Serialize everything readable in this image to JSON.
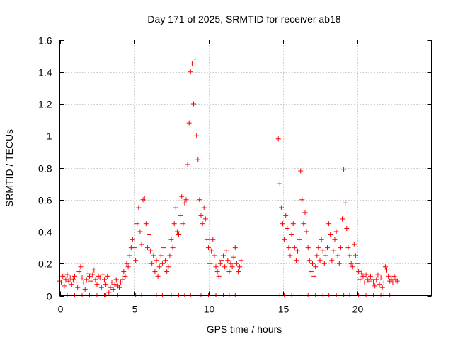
{
  "colors": {
    "series": "#ff0000",
    "grid": "#a0a0a0",
    "axis": "#000000"
  },
  "chart_data": {
    "type": "scatter",
    "title": "Day 171 of 2025, SRMTID for receiver ab18",
    "xlabel": "GPS time / hours",
    "ylabel": "SRMTID / TECUs",
    "xlim": [
      0,
      25
    ],
    "ylim": [
      0,
      1.6
    ],
    "xticks": [
      0,
      5,
      10,
      15,
      20
    ],
    "yticks": [
      0,
      0.2,
      0.4,
      0.6,
      0.8,
      1,
      1.2,
      1.4,
      1.6
    ],
    "xtick_labels": [
      "0",
      "5",
      "10",
      "15",
      "20"
    ],
    "ytick_labels": [
      "0",
      "0.2",
      "0.4",
      "0.6",
      "0.8",
      "1",
      "1.2",
      "1.4",
      "1.6"
    ],
    "grid": true,
    "marker": "+",
    "data_gap_hours": [
      12.3,
      14.6
    ],
    "series": [
      {
        "name": "SRMTID",
        "points": [
          [
            0.0,
            0.09
          ],
          [
            0.1,
            0.08
          ],
          [
            0.2,
            0.12
          ],
          [
            0.3,
            0.06
          ],
          [
            0.4,
            0.1
          ],
          [
            0.5,
            0.13
          ],
          [
            0.6,
            0.09
          ],
          [
            0.7,
            0.11
          ],
          [
            0.8,
            0.07
          ],
          [
            0.9,
            0.1
          ],
          [
            1.0,
            0.12
          ],
          [
            1.1,
            0.08
          ],
          [
            1.2,
            0.05
          ],
          [
            1.3,
            0.15
          ],
          [
            1.4,
            0.18
          ],
          [
            1.5,
            0.11
          ],
          [
            1.6,
            0.08
          ],
          [
            1.7,
            0.04
          ],
          [
            1.8,
            0.1
          ],
          [
            1.9,
            0.14
          ],
          [
            2.0,
            0.12
          ],
          [
            2.1,
            0.09
          ],
          [
            2.2,
            0.13
          ],
          [
            2.3,
            0.16
          ],
          [
            2.4,
            0.1
          ],
          [
            2.5,
            0.07
          ],
          [
            2.6,
            0.12
          ],
          [
            2.7,
            0.11
          ],
          [
            2.8,
            0.05
          ],
          [
            2.9,
            0.13
          ],
          [
            3.0,
            0.1
          ],
          [
            3.1,
            0.07
          ],
          [
            3.2,
            0.12
          ],
          [
            3.3,
            0.02
          ],
          [
            3.4,
            0.05
          ],
          [
            3.5,
            0.08
          ],
          [
            3.6,
            0.04
          ],
          [
            3.7,
            0.07
          ],
          [
            3.8,
            0.1
          ],
          [
            3.9,
            0.06
          ],
          [
            4.0,
            0.05
          ],
          [
            4.1,
            0.08
          ],
          [
            4.2,
            0.1
          ],
          [
            4.3,
            0.15
          ],
          [
            4.4,
            0.12
          ],
          [
            4.5,
            0.2
          ],
          [
            4.6,
            0.18
          ],
          [
            4.7,
            0.25
          ],
          [
            4.8,
            0.3
          ],
          [
            4.9,
            0.35
          ],
          [
            5.0,
            0.3
          ],
          [
            5.1,
            0.22
          ],
          [
            5.2,
            0.45
          ],
          [
            5.3,
            0.55
          ],
          [
            5.4,
            0.4
          ],
          [
            5.5,
            0.32
          ],
          [
            5.6,
            0.6
          ],
          [
            5.7,
            0.61
          ],
          [
            5.8,
            0.45
          ],
          [
            5.9,
            0.3
          ],
          [
            6.0,
            0.38
          ],
          [
            6.1,
            0.28
          ],
          [
            6.2,
            0.2
          ],
          [
            6.3,
            0.25
          ],
          [
            6.4,
            0.15
          ],
          [
            6.5,
            0.22
          ],
          [
            6.6,
            0.12
          ],
          [
            6.7,
            0.18
          ],
          [
            6.8,
            0.25
          ],
          [
            6.9,
            0.2
          ],
          [
            7.0,
            0.3
          ],
          [
            7.1,
            0.22
          ],
          [
            7.2,
            0.15
          ],
          [
            7.3,
            0.18
          ],
          [
            7.4,
            0.25
          ],
          [
            7.5,
            0.35
          ],
          [
            7.6,
            0.3
          ],
          [
            7.7,
            0.45
          ],
          [
            7.8,
            0.55
          ],
          [
            7.9,
            0.4
          ],
          [
            8.0,
            0.38
          ],
          [
            8.1,
            0.5
          ],
          [
            8.2,
            0.62
          ],
          [
            8.3,
            0.45
          ],
          [
            8.4,
            0.58
          ],
          [
            8.5,
            0.6
          ],
          [
            8.6,
            0.82
          ],
          [
            8.7,
            1.08
          ],
          [
            8.8,
            1.4
          ],
          [
            8.9,
            1.45
          ],
          [
            9.0,
            1.2
          ],
          [
            9.1,
            1.48
          ],
          [
            9.2,
            1.0
          ],
          [
            9.3,
            0.85
          ],
          [
            9.4,
            0.6
          ],
          [
            9.5,
            0.5
          ],
          [
            9.6,
            0.45
          ],
          [
            9.7,
            0.55
          ],
          [
            9.8,
            0.48
          ],
          [
            9.9,
            0.35
          ],
          [
            10.0,
            0.3
          ],
          [
            10.1,
            0.2
          ],
          [
            10.2,
            0.28
          ],
          [
            10.3,
            0.35
          ],
          [
            10.4,
            0.25
          ],
          [
            10.5,
            0.18
          ],
          [
            10.6,
            0.15
          ],
          [
            10.7,
            0.12
          ],
          [
            10.8,
            0.2
          ],
          [
            10.9,
            0.22
          ],
          [
            11.0,
            0.25
          ],
          [
            11.1,
            0.18
          ],
          [
            11.2,
            0.28
          ],
          [
            11.3,
            0.22
          ],
          [
            11.4,
            0.15
          ],
          [
            11.5,
            0.2
          ],
          [
            11.6,
            0.18
          ],
          [
            11.7,
            0.24
          ],
          [
            11.8,
            0.3
          ],
          [
            11.9,
            0.2
          ],
          [
            12.0,
            0.15
          ],
          [
            12.1,
            0.18
          ],
          [
            12.2,
            0.22
          ],
          [
            14.7,
            0.98
          ],
          [
            14.8,
            0.7
          ],
          [
            14.9,
            0.55
          ],
          [
            15.0,
            0.45
          ],
          [
            15.1,
            0.35
          ],
          [
            15.2,
            0.5
          ],
          [
            15.3,
            0.42
          ],
          [
            15.4,
            0.3
          ],
          [
            15.5,
            0.25
          ],
          [
            15.6,
            0.38
          ],
          [
            15.7,
            0.45
          ],
          [
            15.8,
            0.3
          ],
          [
            15.9,
            0.22
          ],
          [
            16.0,
            0.28
          ],
          [
            16.1,
            0.35
          ],
          [
            16.2,
            0.78
          ],
          [
            16.3,
            0.6
          ],
          [
            16.4,
            0.45
          ],
          [
            16.5,
            0.52
          ],
          [
            16.6,
            0.4
          ],
          [
            16.7,
            0.3
          ],
          [
            16.8,
            0.22
          ],
          [
            16.9,
            0.15
          ],
          [
            17.0,
            0.2
          ],
          [
            17.1,
            0.12
          ],
          [
            17.2,
            0.18
          ],
          [
            17.3,
            0.25
          ],
          [
            17.4,
            0.3
          ],
          [
            17.5,
            0.22
          ],
          [
            17.6,
            0.35
          ],
          [
            17.7,
            0.28
          ],
          [
            17.8,
            0.2
          ],
          [
            17.9,
            0.25
          ],
          [
            18.0,
            0.3
          ],
          [
            18.1,
            0.45
          ],
          [
            18.2,
            0.38
          ],
          [
            18.3,
            0.22
          ],
          [
            18.4,
            0.28
          ],
          [
            18.5,
            0.35
          ],
          [
            18.6,
            0.4
          ],
          [
            18.7,
            0.25
          ],
          [
            18.8,
            0.2
          ],
          [
            18.9,
            0.3
          ],
          [
            19.0,
            0.48
          ],
          [
            19.1,
            0.79
          ],
          [
            19.2,
            0.58
          ],
          [
            19.3,
            0.42
          ],
          [
            19.4,
            0.3
          ],
          [
            19.5,
            0.25
          ],
          [
            19.6,
            0.2
          ],
          [
            19.7,
            0.18
          ],
          [
            19.8,
            0.32
          ],
          [
            19.9,
            0.25
          ],
          [
            20.0,
            0.2
          ],
          [
            20.1,
            0.15
          ],
          [
            20.2,
            0.1
          ],
          [
            20.3,
            0.14
          ],
          [
            20.4,
            0.12
          ],
          [
            20.5,
            0.08
          ],
          [
            20.6,
            0.13
          ],
          [
            20.7,
            0.1
          ],
          [
            20.8,
            0.09
          ],
          [
            20.9,
            0.12
          ],
          [
            21.0,
            0.1
          ],
          [
            21.1,
            0.08
          ],
          [
            21.2,
            0.06
          ],
          [
            21.3,
            0.1
          ],
          [
            21.4,
            0.13
          ],
          [
            21.5,
            0.07
          ],
          [
            21.6,
            0.11
          ],
          [
            21.7,
            0.05
          ],
          [
            21.8,
            0.08
          ],
          [
            21.9,
            0.18
          ],
          [
            22.0,
            0.16
          ],
          [
            22.1,
            0.12
          ],
          [
            22.2,
            0.09
          ],
          [
            22.3,
            0.1
          ],
          [
            22.4,
            0.08
          ],
          [
            22.5,
            0.12
          ],
          [
            22.6,
            0.1
          ],
          [
            22.7,
            0.09
          ]
        ],
        "baseline_points": [
          [
            0.5,
            0.0
          ],
          [
            1.0,
            0.0
          ],
          [
            1.1,
            0.0
          ],
          [
            1.5,
            0.0
          ],
          [
            2.0,
            0.0
          ],
          [
            2.1,
            0.0
          ],
          [
            2.5,
            0.0
          ],
          [
            3.0,
            0.0
          ],
          [
            3.1,
            0.0
          ],
          [
            3.9,
            0.0
          ],
          [
            5.1,
            0.0
          ],
          [
            5.5,
            0.0
          ],
          [
            6.5,
            0.0
          ],
          [
            6.9,
            0.0
          ],
          [
            7.5,
            0.0
          ],
          [
            8.0,
            0.0
          ],
          [
            8.4,
            0.0
          ],
          [
            8.8,
            0.0
          ],
          [
            9.5,
            0.0
          ],
          [
            10.0,
            0.0
          ],
          [
            10.5,
            0.0
          ],
          [
            11.0,
            0.0
          ],
          [
            11.4,
            0.0
          ],
          [
            11.8,
            0.0
          ],
          [
            14.8,
            0.0
          ],
          [
            15.1,
            0.0
          ],
          [
            15.6,
            0.0
          ],
          [
            16.1,
            0.0
          ],
          [
            16.7,
            0.0
          ],
          [
            17.2,
            0.0
          ],
          [
            17.7,
            0.0
          ],
          [
            18.1,
            0.0
          ],
          [
            18.6,
            0.0
          ],
          [
            19.1,
            0.0
          ],
          [
            19.5,
            0.0
          ],
          [
            20.1,
            0.0
          ],
          [
            20.6,
            0.0
          ],
          [
            21.1,
            0.0
          ],
          [
            21.6,
            0.0
          ],
          [
            21.8,
            0.0
          ],
          [
            22.2,
            0.0
          ]
        ]
      }
    ]
  }
}
